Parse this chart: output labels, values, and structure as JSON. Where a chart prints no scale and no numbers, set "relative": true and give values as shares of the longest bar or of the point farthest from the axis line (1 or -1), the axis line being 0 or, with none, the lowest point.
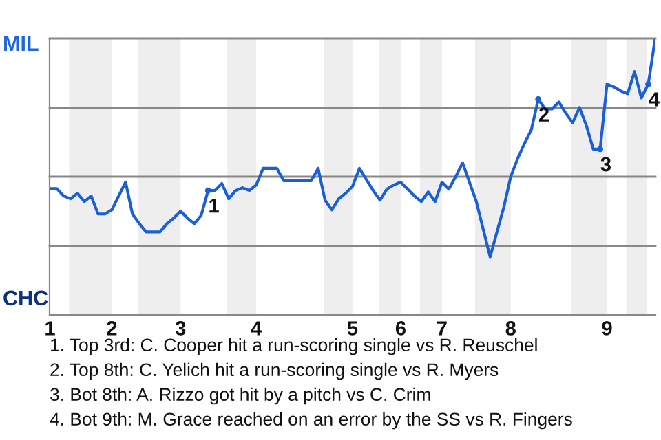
{
  "chart_data": {
    "type": "line",
    "relative": true,
    "line_style": "solid",
    "marker": "none",
    "categories": [
      "1",
      null,
      null,
      null,
      null,
      null,
      null,
      null,
      null,
      "2",
      null,
      null,
      null,
      null,
      null,
      null,
      null,
      null,
      null,
      "3",
      null,
      null,
      null,
      null,
      null,
      null,
      null,
      null,
      null,
      null,
      "4",
      null,
      null,
      null,
      null,
      null,
      null,
      null,
      null,
      null,
      null,
      null,
      null,
      null,
      "5",
      null,
      null,
      null,
      null,
      null,
      null,
      "6",
      null,
      null,
      null,
      null,
      null,
      "7",
      null,
      null,
      null,
      null,
      null,
      null,
      null,
      null,
      null,
      "8",
      null,
      null,
      null,
      null,
      null,
      null,
      null,
      null,
      null,
      null,
      null,
      null,
      null,
      "9",
      null,
      null,
      null,
      null,
      null,
      null,
      null
    ],
    "series": [
      {
        "color": "#1a5fd8",
        "values": [
          0.457,
          0.457,
          0.43,
          0.42,
          0.44,
          0.41,
          0.43,
          0.365,
          0.365,
          0.38,
          0.43,
          0.48,
          0.365,
          0.33,
          0.3,
          0.3,
          0.3,
          0.33,
          0.35,
          0.375,
          0.35,
          0.33,
          0.36,
          0.45,
          0.45,
          0.475,
          0.42,
          0.45,
          0.46,
          0.45,
          0.47,
          0.53,
          0.53,
          0.53,
          0.485,
          0.485,
          0.485,
          0.485,
          0.485,
          0.53,
          0.415,
          0.38,
          0.42,
          0.44,
          0.465,
          0.53,
          0.49,
          0.45,
          0.415,
          0.455,
          0.47,
          0.48,
          0.455,
          0.43,
          0.41,
          0.445,
          0.41,
          0.48,
          0.455,
          0.5,
          0.55,
          0.48,
          0.41,
          0.31,
          0.21,
          0.3,
          0.39,
          0.5,
          0.565,
          0.62,
          0.67,
          0.78,
          0.745,
          0.745,
          0.77,
          0.73,
          0.695,
          0.75,
          0.685,
          0.6,
          0.6,
          0.835,
          0.825,
          0.81,
          0.8,
          0.88,
          0.785,
          0.835,
          1.0
        ]
      },
      {
        "name": "1",
        "type": "scatter",
        "marker": "circle",
        "color": "#1a5fd8",
        "values": [
          null,
          null,
          null,
          null,
          null,
          null,
          null,
          null,
          null,
          null,
          null,
          null,
          null,
          null,
          null,
          null,
          null,
          null,
          null,
          null,
          null,
          null,
          null,
          0.45,
          null,
          null,
          null,
          null,
          null,
          null,
          null,
          null,
          null,
          null,
          null,
          null,
          null,
          null,
          null,
          null,
          null,
          null,
          null,
          null,
          null,
          null,
          null,
          null,
          null,
          null,
          null,
          null,
          null,
          null,
          null,
          null,
          null,
          null,
          null,
          null,
          null,
          null,
          null,
          null,
          null,
          null,
          null,
          null,
          null,
          null,
          null,
          null,
          null,
          null,
          null,
          null,
          null,
          null,
          null,
          null,
          null,
          null,
          null,
          null,
          null,
          null,
          null,
          null,
          null
        ]
      },
      {
        "name": "2",
        "type": "scatter",
        "marker": "circle",
        "color": "#1a5fd8",
        "values": [
          null,
          null,
          null,
          null,
          null,
          null,
          null,
          null,
          null,
          null,
          null,
          null,
          null,
          null,
          null,
          null,
          null,
          null,
          null,
          null,
          null,
          null,
          null,
          null,
          null,
          null,
          null,
          null,
          null,
          null,
          null,
          null,
          null,
          null,
          null,
          null,
          null,
          null,
          null,
          null,
          null,
          null,
          null,
          null,
          null,
          null,
          null,
          null,
          null,
          null,
          null,
          null,
          null,
          null,
          null,
          null,
          null,
          null,
          null,
          null,
          null,
          null,
          null,
          null,
          null,
          null,
          null,
          null,
          null,
          null,
          null,
          0.78,
          null,
          null,
          null,
          null,
          null,
          null,
          null,
          null,
          null,
          null,
          null,
          null,
          null,
          null,
          null,
          null,
          null
        ]
      },
      {
        "name": "3",
        "type": "scatter",
        "marker": "circle",
        "color": "#1a5fd8",
        "values": [
          null,
          null,
          null,
          null,
          null,
          null,
          null,
          null,
          null,
          null,
          null,
          null,
          null,
          null,
          null,
          null,
          null,
          null,
          null,
          null,
          null,
          null,
          null,
          null,
          null,
          null,
          null,
          null,
          null,
          null,
          null,
          null,
          null,
          null,
          null,
          null,
          null,
          null,
          null,
          null,
          null,
          null,
          null,
          null,
          null,
          null,
          null,
          null,
          null,
          null,
          null,
          null,
          null,
          null,
          null,
          null,
          null,
          null,
          null,
          null,
          null,
          null,
          null,
          null,
          null,
          null,
          null,
          null,
          null,
          null,
          null,
          null,
          null,
          null,
          null,
          null,
          null,
          null,
          null,
          null,
          0.6,
          null,
          null,
          null,
          null,
          null,
          null,
          null,
          null
        ]
      },
      {
        "name": "4",
        "type": "scatter",
        "marker": "circle",
        "color": "#1a5fd8",
        "values": [
          null,
          null,
          null,
          null,
          null,
          null,
          null,
          null,
          null,
          null,
          null,
          null,
          null,
          null,
          null,
          null,
          null,
          null,
          null,
          null,
          null,
          null,
          null,
          null,
          null,
          null,
          null,
          null,
          null,
          null,
          null,
          null,
          null,
          null,
          null,
          null,
          null,
          null,
          null,
          null,
          null,
          null,
          null,
          null,
          null,
          null,
          null,
          null,
          null,
          null,
          null,
          null,
          null,
          null,
          null,
          null,
          null,
          null,
          null,
          null,
          null,
          null,
          null,
          null,
          null,
          null,
          null,
          null,
          null,
          null,
          null,
          null,
          null,
          null,
          null,
          null,
          null,
          null,
          null,
          null,
          null,
          null,
          null,
          null,
          null,
          null,
          null,
          0.835,
          null
        ]
      }
    ],
    "ref_lines": [
      {
        "axis": "y",
        "value": 0.25,
        "color": "#888888"
      },
      {
        "axis": "y",
        "value": 0.5,
        "color": "#888888"
      },
      {
        "axis": "y",
        "value": 0.75,
        "color": "#888888"
      },
      {
        "axis": "y",
        "value": 1.0,
        "color": "#888888"
      }
    ],
    "annotations": [
      "MIL",
      "CHC",
      "1. Top 3rd: C. Cooper hit a run-scoring single vs R. Reuschel",
      "2. Top 8th: C. Yelich hit a run-scoring single vs R. Myers",
      "3. Bot 8th: A. Rizzo got hit by a pitch vs C. Crim",
      "4. Bot 9th: M. Grace reached on an error by the SS vs R. Fingers"
    ]
  }
}
